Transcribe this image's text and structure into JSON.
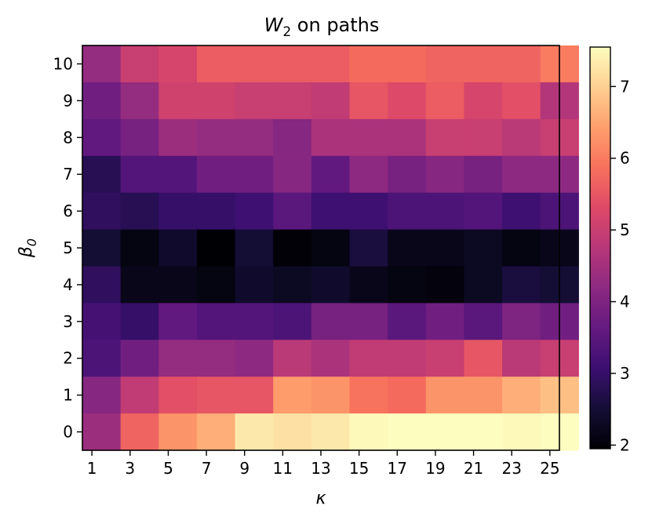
{
  "chart_data": {
    "type": "heatmap",
    "title_main": "W",
    "title_sub": "2",
    "title_rest": " on paths",
    "xlabel": "κ",
    "ylabel_main": "β",
    "ylabel_sub": "0",
    "colormap": "magma",
    "x_categories": [
      "1",
      "2",
      "3",
      "4",
      "5",
      "6",
      "7",
      "8",
      "9",
      "10",
      "11",
      "12",
      "13",
      "14",
      "15",
      "16",
      "17",
      "18",
      "19",
      "20",
      "21",
      "22",
      "23",
      "24",
      "25"
    ],
    "x_tick_labels": [
      "1",
      "3",
      "5",
      "7",
      "9",
      "11",
      "13",
      "15",
      "17",
      "19",
      "21",
      "23",
      "25"
    ],
    "y_categories": [
      "0",
      "1",
      "2",
      "3",
      "4",
      "5",
      "6",
      "7",
      "8",
      "9",
      "10"
    ],
    "col_widths": [
      2,
      2,
      2,
      2,
      2,
      2,
      2,
      2,
      2,
      2,
      2,
      2,
      2
    ],
    "values_top_to_bottom": [
      [
        4.3,
        5.0,
        5.2,
        5.6,
        5.6,
        5.6,
        5.6,
        5.8,
        5.8,
        5.7,
        5.7,
        5.7,
        6.0
      ],
      [
        3.8,
        4.3,
        5.1,
        5.1,
        5.0,
        5.0,
        4.9,
        5.5,
        5.3,
        5.6,
        5.2,
        5.4,
        4.7
      ],
      [
        3.6,
        3.9,
        4.4,
        4.3,
        4.3,
        4.1,
        4.6,
        4.6,
        4.6,
        5.0,
        5.0,
        4.8,
        5.0
      ],
      [
        2.8,
        3.4,
        3.4,
        3.8,
        3.8,
        4.1,
        3.6,
        4.2,
        3.9,
        4.1,
        3.9,
        4.2,
        4.2
      ],
      [
        2.9,
        2.8,
        3.0,
        3.0,
        3.1,
        3.5,
        3.1,
        3.1,
        3.3,
        3.3,
        3.4,
        3.1,
        3.3
      ],
      [
        2.5,
        2.1,
        2.4,
        1.95,
        2.5,
        2.0,
        2.1,
        2.6,
        2.2,
        2.2,
        2.3,
        2.1,
        2.2
      ],
      [
        2.9,
        2.2,
        2.2,
        2.1,
        2.4,
        2.3,
        2.4,
        2.2,
        2.1,
        2.05,
        2.3,
        2.6,
        2.5
      ],
      [
        3.2,
        3.0,
        3.6,
        3.4,
        3.4,
        3.3,
        3.9,
        3.9,
        3.5,
        3.8,
        3.5,
        4.0,
        3.8
      ],
      [
        3.3,
        3.8,
        4.3,
        4.3,
        4.2,
        4.8,
        4.6,
        4.9,
        4.9,
        5.0,
        5.5,
        4.8,
        5.0
      ],
      [
        4.1,
        4.9,
        5.4,
        5.5,
        5.5,
        6.4,
        6.3,
        5.9,
        5.8,
        6.3,
        6.3,
        6.6,
        6.8
      ],
      [
        4.4,
        5.7,
        6.3,
        6.6,
        7.3,
        7.2,
        7.3,
        7.5,
        7.6,
        7.6,
        7.6,
        7.5,
        7.6
      ]
    ],
    "color_range": [
      1.95,
      7.55
    ],
    "colorbar_ticks": [
      "2",
      "3",
      "4",
      "5",
      "6",
      "7"
    ]
  }
}
